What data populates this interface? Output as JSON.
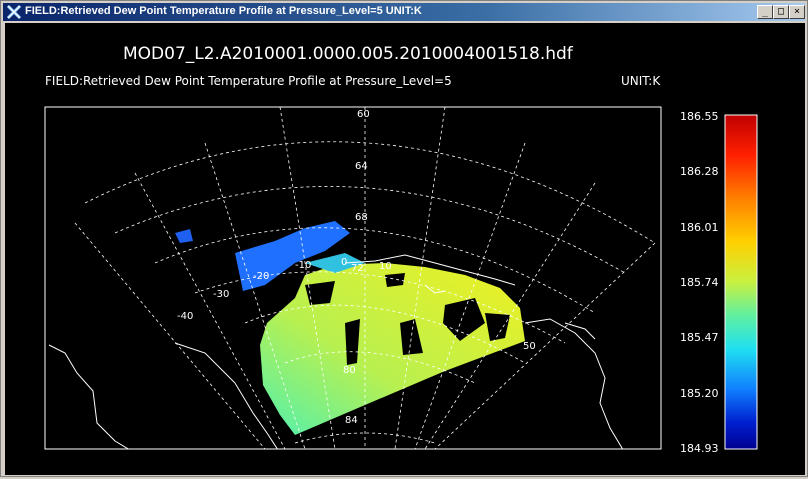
{
  "window": {
    "title": "FIELD:Retrieved Dew Point Temperature Profile at Pressure_Level=5  UNIT:K",
    "buttons": {
      "minimize": "_",
      "maximize": "□",
      "close": "×"
    }
  },
  "plot": {
    "filename": "MOD07_L2.A2010001.0000.005.2010004001518.hdf",
    "field_label": "FIELD:Retrieved Dew Point Temperature Profile at Pressure_Level=5",
    "unit_label": "UNIT:K",
    "lat_labels": [
      "60",
      "64",
      "68",
      "72",
      "80",
      "84"
    ],
    "lon_labels": [
      "-40",
      "-30",
      "-20",
      "-10",
      "0",
      "10",
      "50"
    ]
  },
  "colorbar": {
    "ticks": [
      "186.55",
      "186.28",
      "186.01",
      "185.74",
      "185.47",
      "185.20",
      "184.93"
    ],
    "colors": [
      "#c00000",
      "#ff2000",
      "#ff8000",
      "#ffd000",
      "#c8f040",
      "#60f0a0",
      "#20e0f0",
      "#1080ff",
      "#0020d0",
      "#000090"
    ]
  },
  "colors": {
    "background": "#000000",
    "foreground": "#ffffff",
    "titlebar_start": "#0a246a",
    "titlebar_end": "#a6caf0"
  }
}
